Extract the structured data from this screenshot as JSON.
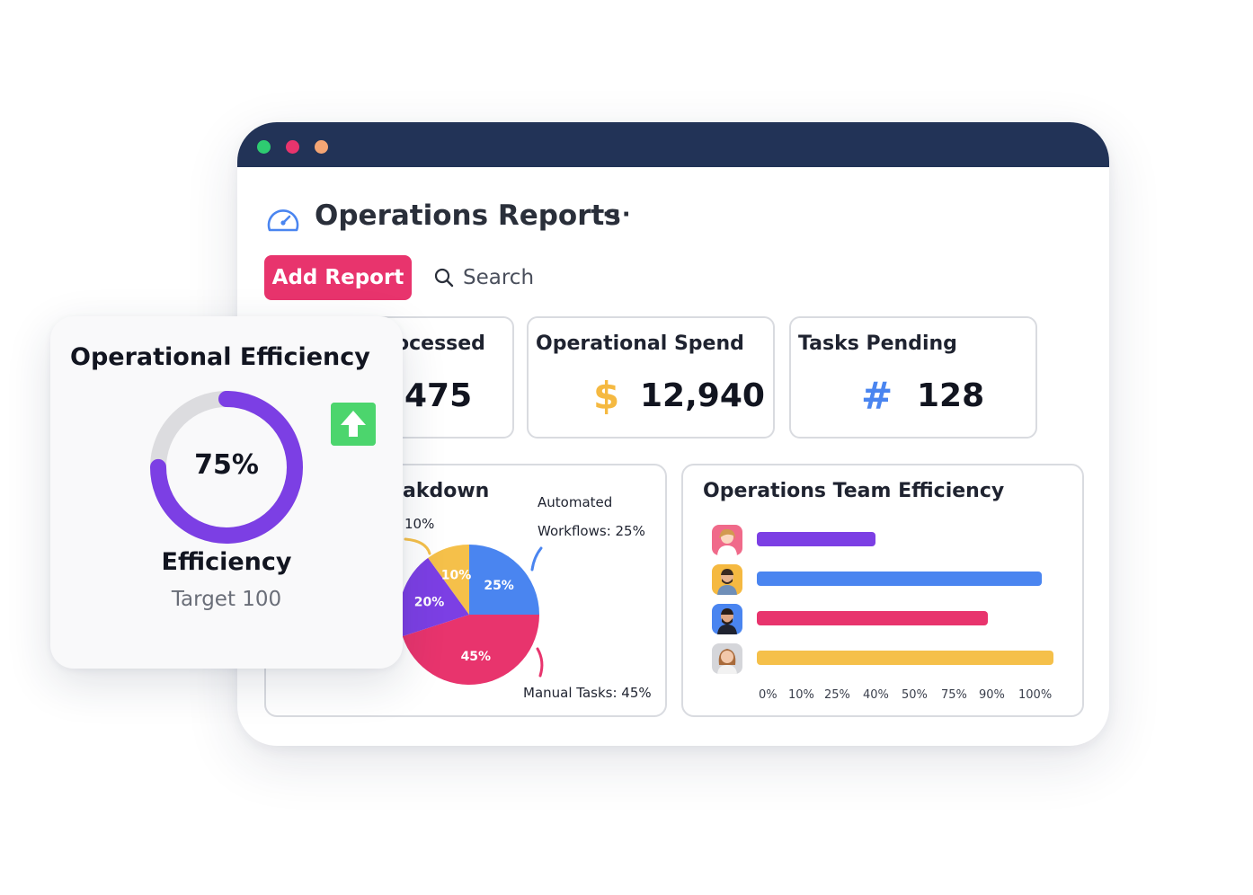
{
  "window": {
    "title": "Operations Reports",
    "more_label": "···",
    "add_button": "Add Report",
    "search_label": "Search"
  },
  "stats": [
    {
      "title": "Orders Processed",
      "visible_title": "ocessed",
      "value": "475",
      "visible_value": "475",
      "icon": "partially-hidden"
    },
    {
      "title": "Operational Spend",
      "value": "12,940",
      "icon_glyph": "$",
      "icon": "dollar-icon",
      "color": "#f5b941"
    },
    {
      "title": "Tasks Pending",
      "value": "128",
      "icon_glyph": "#",
      "icon": "hash-icon",
      "color": "#4a85f0"
    }
  ],
  "breakdown": {
    "visible_title": "akdown",
    "annotations": {
      "automated_line1": "Automated",
      "automated_line2": "Workflows: 25%",
      "manual": "Manual Tasks: 45%",
      "ten": "10%"
    },
    "chart_data": {
      "type": "pie",
      "slices": [
        {
          "label": "25%",
          "value": 25,
          "color": "#4a85f0"
        },
        {
          "label": "45%",
          "value": 45,
          "color": "#e8346d"
        },
        {
          "label": "20%",
          "value": 20,
          "color": "#7c3fe4"
        },
        {
          "label": "10%",
          "value": 10,
          "color": "#f5c04a"
        }
      ]
    }
  },
  "team": {
    "title": "Operations Team Efficiency",
    "chart_data": {
      "type": "bar",
      "orientation": "horizontal",
      "series": [
        {
          "member": "member-1",
          "value": 40,
          "color": "#7c3fe4"
        },
        {
          "member": "member-2",
          "value": 96,
          "color": "#4a85f0"
        },
        {
          "member": "member-3",
          "value": 78,
          "color": "#e8346d"
        },
        {
          "member": "member-4",
          "value": 100,
          "color": "#f5c04a"
        }
      ],
      "ticks": [
        "0%",
        "10%",
        "25%",
        "40%",
        "50%",
        "75%",
        "90%",
        "100%"
      ]
    }
  },
  "efficiency_card": {
    "title": "Operational Efficiency",
    "value_label": "75%",
    "value": 75,
    "label": "Efficiency",
    "target": "Target 100",
    "ring_color": "#7c3fe4",
    "track_color": "#dcdcdf"
  }
}
